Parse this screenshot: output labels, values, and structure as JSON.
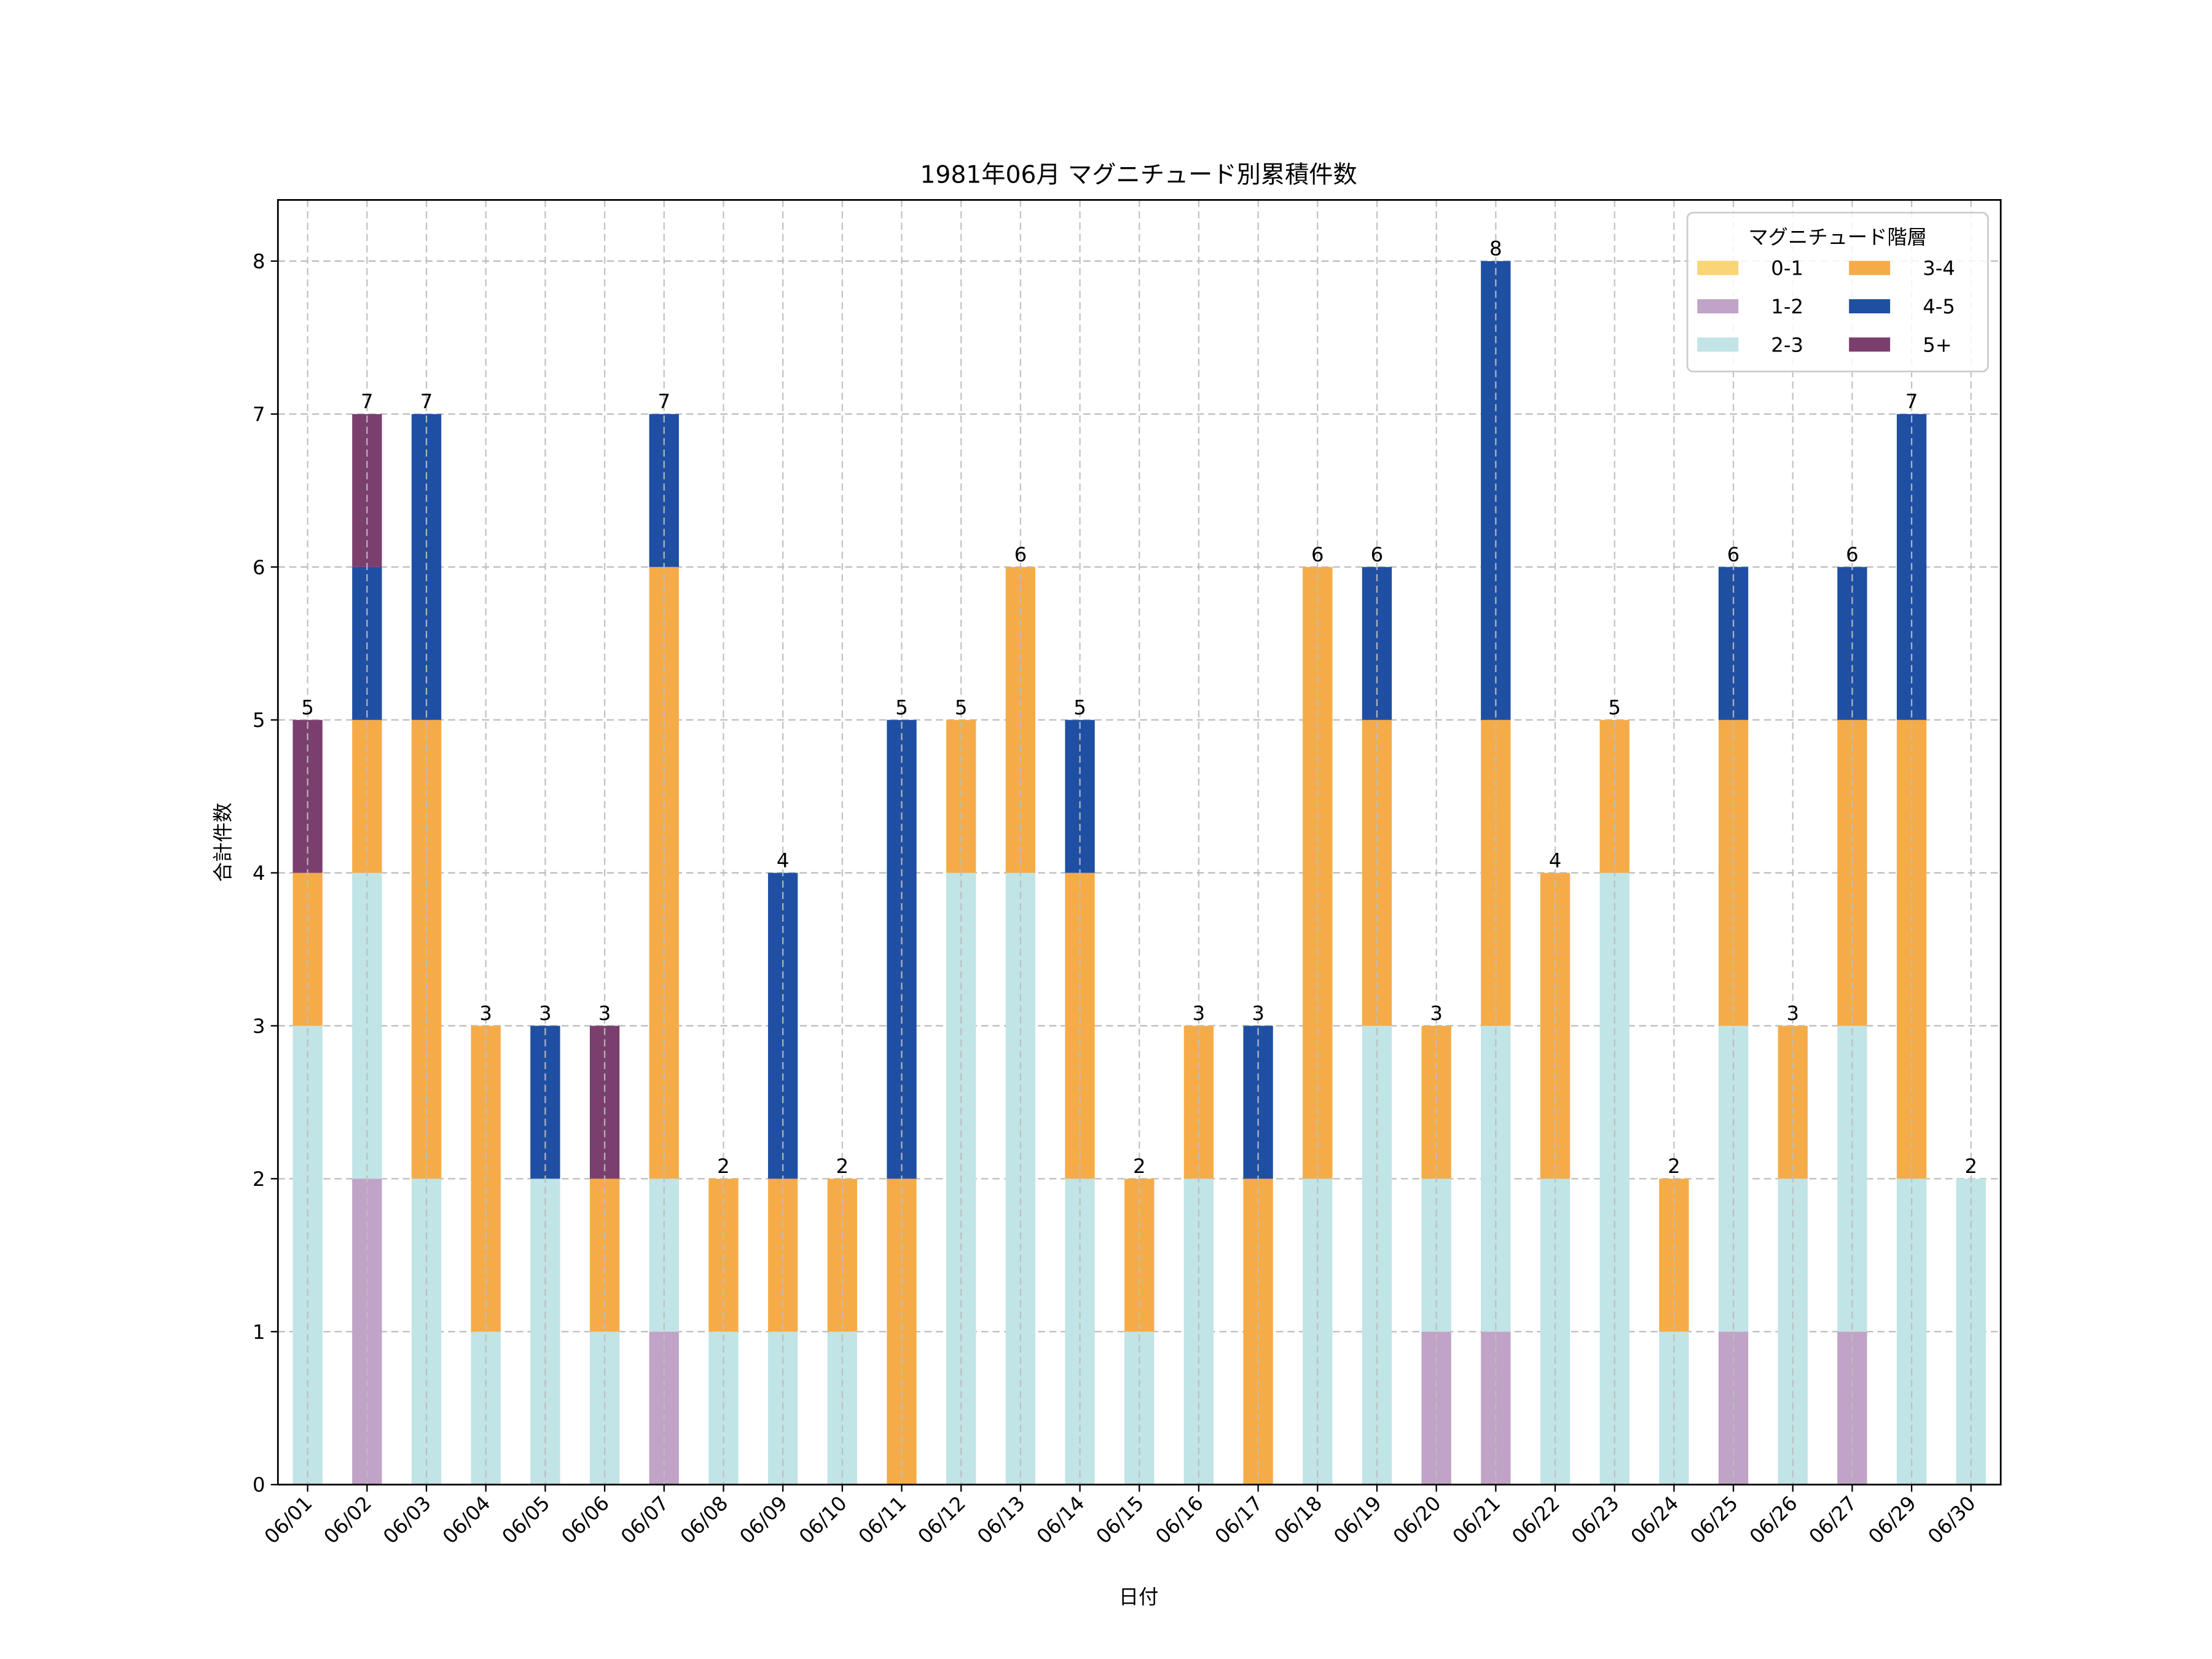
{
  "chart_data": {
    "type": "bar",
    "stacked": true,
    "title": "1981年06月 マグニチュード別累積件数",
    "xlabel": "日付",
    "ylabel": "合計件数",
    "ylim": [
      0,
      8.4
    ],
    "yticks": [
      0,
      1,
      2,
      3,
      4,
      5,
      6,
      7,
      8
    ],
    "grid": true,
    "legend": {
      "title": "マグニチュード階層",
      "placement": "top-right",
      "columns": 2
    },
    "categories": [
      "06/01",
      "06/02",
      "06/03",
      "06/04",
      "06/05",
      "06/06",
      "06/07",
      "06/08",
      "06/09",
      "06/10",
      "06/11",
      "06/12",
      "06/13",
      "06/14",
      "06/15",
      "06/16",
      "06/17",
      "06/18",
      "06/19",
      "06/20",
      "06/21",
      "06/22",
      "06/23",
      "06/24",
      "06/25",
      "06/26",
      "06/27",
      "06/29",
      "06/30"
    ],
    "series": [
      {
        "name": "0-1",
        "color": "#fad576",
        "values": [
          0,
          0,
          0,
          0,
          0,
          0,
          0,
          0,
          0,
          0,
          0,
          0,
          0,
          0,
          0,
          0,
          0,
          0,
          0,
          0,
          0,
          0,
          0,
          0,
          0,
          0,
          0,
          0,
          0
        ]
      },
      {
        "name": "1-2",
        "color": "#c0a3c6",
        "values": [
          0,
          2,
          0,
          0,
          0,
          0,
          1,
          0,
          0,
          0,
          0,
          0,
          0,
          0,
          0,
          0,
          0,
          0,
          0,
          1,
          1,
          0,
          0,
          0,
          1,
          0,
          1,
          0,
          0
        ]
      },
      {
        "name": "2-3",
        "color": "#c1e4e6",
        "values": [
          3,
          2,
          2,
          1,
          2,
          1,
          1,
          1,
          1,
          1,
          0,
          4,
          4,
          2,
          1,
          2,
          0,
          2,
          3,
          1,
          2,
          2,
          4,
          1,
          2,
          2,
          2,
          2,
          2
        ]
      },
      {
        "name": "3-4",
        "color": "#f5ac48",
        "values": [
          1,
          1,
          3,
          2,
          0,
          1,
          4,
          1,
          1,
          1,
          2,
          1,
          2,
          2,
          1,
          1,
          2,
          4,
          2,
          1,
          2,
          2,
          1,
          1,
          2,
          1,
          2,
          3,
          0
        ]
      },
      {
        "name": "4-5",
        "color": "#1f4fa3",
        "values": [
          0,
          1,
          2,
          0,
          1,
          0,
          1,
          0,
          2,
          0,
          3,
          0,
          0,
          1,
          0,
          0,
          1,
          0,
          1,
          0,
          3,
          0,
          0,
          0,
          1,
          0,
          1,
          2,
          0
        ]
      },
      {
        "name": "5+",
        "color": "#7b3f6e",
        "values": [
          1,
          1,
          0,
          0,
          0,
          1,
          0,
          0,
          0,
          0,
          0,
          0,
          0,
          0,
          0,
          0,
          0,
          0,
          0,
          0,
          0,
          0,
          0,
          0,
          0,
          0,
          0,
          0,
          0
        ]
      }
    ],
    "totals": [
      5,
      7,
      7,
      3,
      3,
      3,
      7,
      2,
      4,
      2,
      5,
      5,
      6,
      5,
      2,
      3,
      3,
      6,
      6,
      3,
      8,
      4,
      5,
      2,
      6,
      3,
      6,
      7,
      2
    ]
  }
}
